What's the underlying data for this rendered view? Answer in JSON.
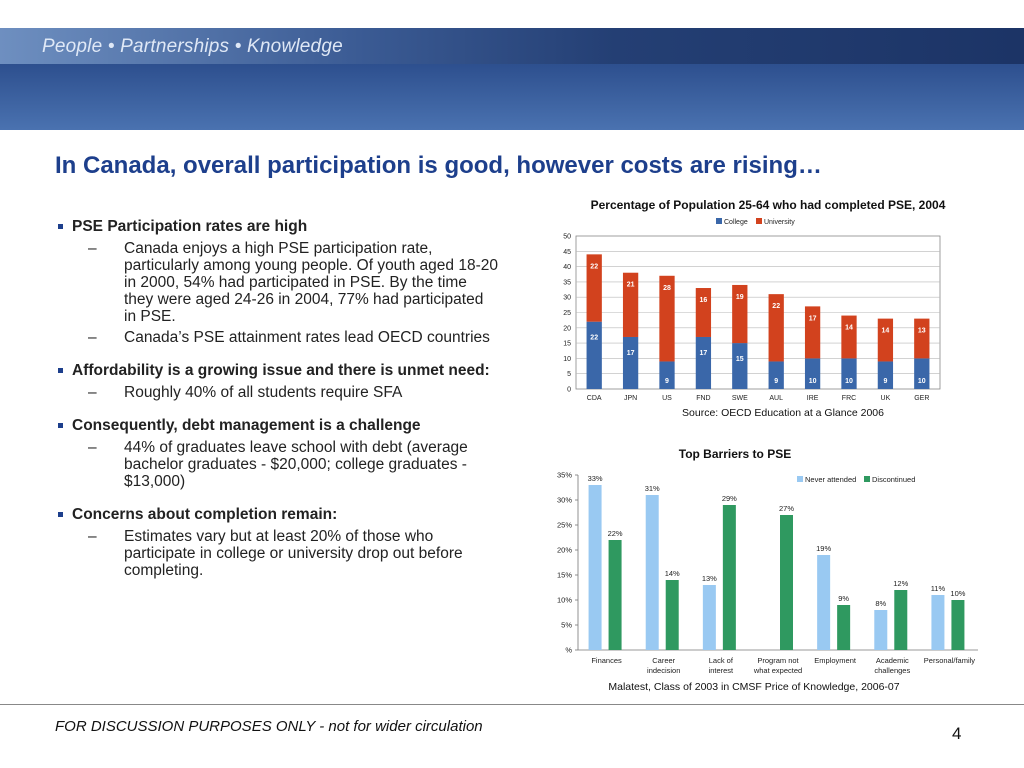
{
  "header": {
    "tagline": "People • Partnerships • Knowledge"
  },
  "title": "In Canada, overall participation is good, however costs are rising…",
  "bullets": [
    {
      "text": "PSE Participation rates are high",
      "subs": [
        "Canada enjoys a high PSE participation rate, particularly among young people.  Of youth aged 18-20 in 2000, 54% had participated in PSE.  By the time they were aged 24-26 in 2004, 77% had participated in PSE.",
        "Canada’s PSE attainment rates lead OECD countries"
      ]
    },
    {
      "text": "Affordability is a growing issue and there is unmet need:",
      "subs": [
        "Roughly 40% of all students require SFA"
      ]
    },
    {
      "text": "Consequently, debt management is a challenge",
      "subs": [
        "44% of graduates leave school with debt (average bachelor graduates - $20,000; college graduates - $13,000)"
      ]
    },
    {
      "text": "Concerns about completion remain:",
      "subs": [
        "Estimates vary but at least 20% of those who participate in college or university drop out before completing."
      ]
    }
  ],
  "chart_data": [
    {
      "type": "bar",
      "stacked": true,
      "title": "Percentage of Population 25-64 who had completed PSE, 2004",
      "source": "Source: OECD Education at a Glance 2006",
      "categories": [
        "CDA",
        "JPN",
        "US",
        "FND",
        "SWE",
        "AUL",
        "IRE",
        "FRC",
        "UK",
        "GER"
      ],
      "series": [
        {
          "name": "College",
          "values": [
            22,
            17,
            9,
            17,
            15,
            9,
            10,
            10,
            9,
            10
          ],
          "color": "#3a67a9"
        },
        {
          "name": "University",
          "values": [
            22,
            21,
            28,
            16,
            19,
            22,
            17,
            14,
            14,
            13
          ],
          "color": "#d2421e"
        }
      ],
      "ylim": [
        0,
        50
      ],
      "yticks": [
        "0",
        "5",
        "10",
        "15",
        "20",
        "25",
        "30",
        "35",
        "40",
        "45",
        "50"
      ],
      "legend": "top",
      "grid": true
    },
    {
      "type": "bar",
      "title": "Top Barriers to PSE",
      "source": "Malatest, Class of 2003 in CMSF Price of Knowledge, 2006-07",
      "categories": [
        [
          "Finances"
        ],
        [
          "Career",
          "indecision"
        ],
        [
          "Lack of",
          "interest"
        ],
        [
          "Program not",
          "what expected"
        ],
        [
          "Employment"
        ],
        [
          "Academic",
          "challenges"
        ],
        [
          "Personal/family"
        ]
      ],
      "series": [
        {
          "name": "Never attended",
          "values": [
            33,
            31,
            13,
            null,
            19,
            8,
            11
          ],
          "labels": [
            "33%",
            "31%",
            "13%",
            "",
            "19%",
            "8%",
            "11%"
          ],
          "color": "#99c9f2"
        },
        {
          "name": "Discontinued",
          "values": [
            22,
            14,
            29,
            27,
            9,
            12,
            10
          ],
          "labels": [
            "22%",
            "14%",
            "29%",
            "27%",
            "9%",
            "12%",
            "10%"
          ],
          "color": "#2f9960"
        }
      ],
      "ylim": [
        0,
        35
      ],
      "yticks": [
        "%",
        "5%",
        "10%",
        "15%",
        "20%",
        "25%",
        "30%",
        "35%"
      ],
      "legend": "top-right",
      "grid": false
    }
  ],
  "footer": {
    "text": "FOR DISCUSSION PURPOSES ONLY - not for wider circulation",
    "page": "4"
  }
}
